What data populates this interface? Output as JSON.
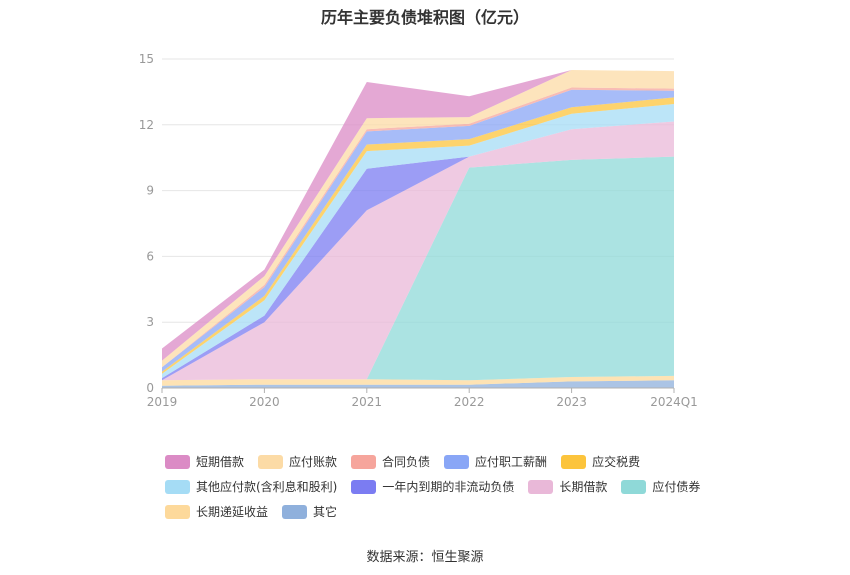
{
  "chart_data": {
    "type": "area",
    "stacked": true,
    "title": "历年主要负债堆积图（亿元）",
    "categories": [
      "2019",
      "2020",
      "2021",
      "2022",
      "2023",
      "2024Q1"
    ],
    "ylim": [
      0,
      15
    ],
    "yticks": [
      0,
      3,
      6,
      9,
      12,
      15
    ],
    "grid": true,
    "legend_position": "bottom",
    "series": [
      {
        "name": "其它",
        "color": "#8fb0dc",
        "values": [
          0.1,
          0.15,
          0.15,
          0.15,
          0.3,
          0.35
        ]
      },
      {
        "name": "长期递延收益",
        "color": "#fdd99b",
        "values": [
          0.25,
          0.25,
          0.25,
          0.2,
          0.2,
          0.2
        ]
      },
      {
        "name": "应付债券",
        "color": "#8fd9d8",
        "values": [
          0,
          0,
          0,
          9.7,
          9.9,
          10.0
        ]
      },
      {
        "name": "长期借款",
        "color": "#e9b8d8",
        "values": [
          0,
          2.6,
          7.7,
          0.5,
          1.4,
          1.6
        ]
      },
      {
        "name": "一年内到期的非流动负债",
        "color": "#7b7cf2",
        "values": [
          0.1,
          0.3,
          1.9,
          0,
          0,
          0
        ]
      },
      {
        "name": "其他应付款(含利息和股利)",
        "color": "#a5dcf5",
        "values": [
          0.2,
          0.7,
          0.8,
          0.5,
          0.7,
          0.8
        ]
      },
      {
        "name": "应交税费",
        "color": "#fcc43c",
        "values": [
          0.1,
          0.2,
          0.3,
          0.3,
          0.3,
          0.3
        ]
      },
      {
        "name": "应付职工薪酬",
        "color": "#89a6f6",
        "values": [
          0.2,
          0.4,
          0.6,
          0.6,
          0.8,
          0.3
        ]
      },
      {
        "name": "合同负债",
        "color": "#f6a59c",
        "values": [
          0,
          0.1,
          0.1,
          0.1,
          0.1,
          0.1
        ]
      },
      {
        "name": "应付账款",
        "color": "#fcdba6",
        "values": [
          0.3,
          0.4,
          0.5,
          0.3,
          0.8,
          0.8
        ]
      },
      {
        "name": "短期借款",
        "color": "#db8bc5",
        "values": [
          0.55,
          0.3,
          1.65,
          0.95,
          0,
          0
        ]
      }
    ],
    "source": "数据来源：恒生聚源"
  },
  "legend_rows": [
    [
      {
        "name": "短期借款",
        "color": "#db8bc5"
      },
      {
        "name": "应付账款",
        "color": "#fcdba6"
      },
      {
        "name": "合同负债",
        "color": "#f6a59c"
      },
      {
        "name": "应付职工薪酬",
        "color": "#89a6f6"
      },
      {
        "name": "应交税费",
        "color": "#fcc43c"
      }
    ],
    [
      {
        "name": "其他应付款(含利息和股利)",
        "color": "#a5dcf5"
      },
      {
        "name": "一年内到期的非流动负债",
        "color": "#7b7cf2"
      },
      {
        "name": "长期借款",
        "color": "#e9b8d8"
      },
      {
        "name": "应付债券",
        "color": "#8fd9d8"
      }
    ],
    [
      {
        "name": "长期递延收益",
        "color": "#fdd99b"
      },
      {
        "name": "其它",
        "color": "#8fb0dc"
      }
    ]
  ]
}
